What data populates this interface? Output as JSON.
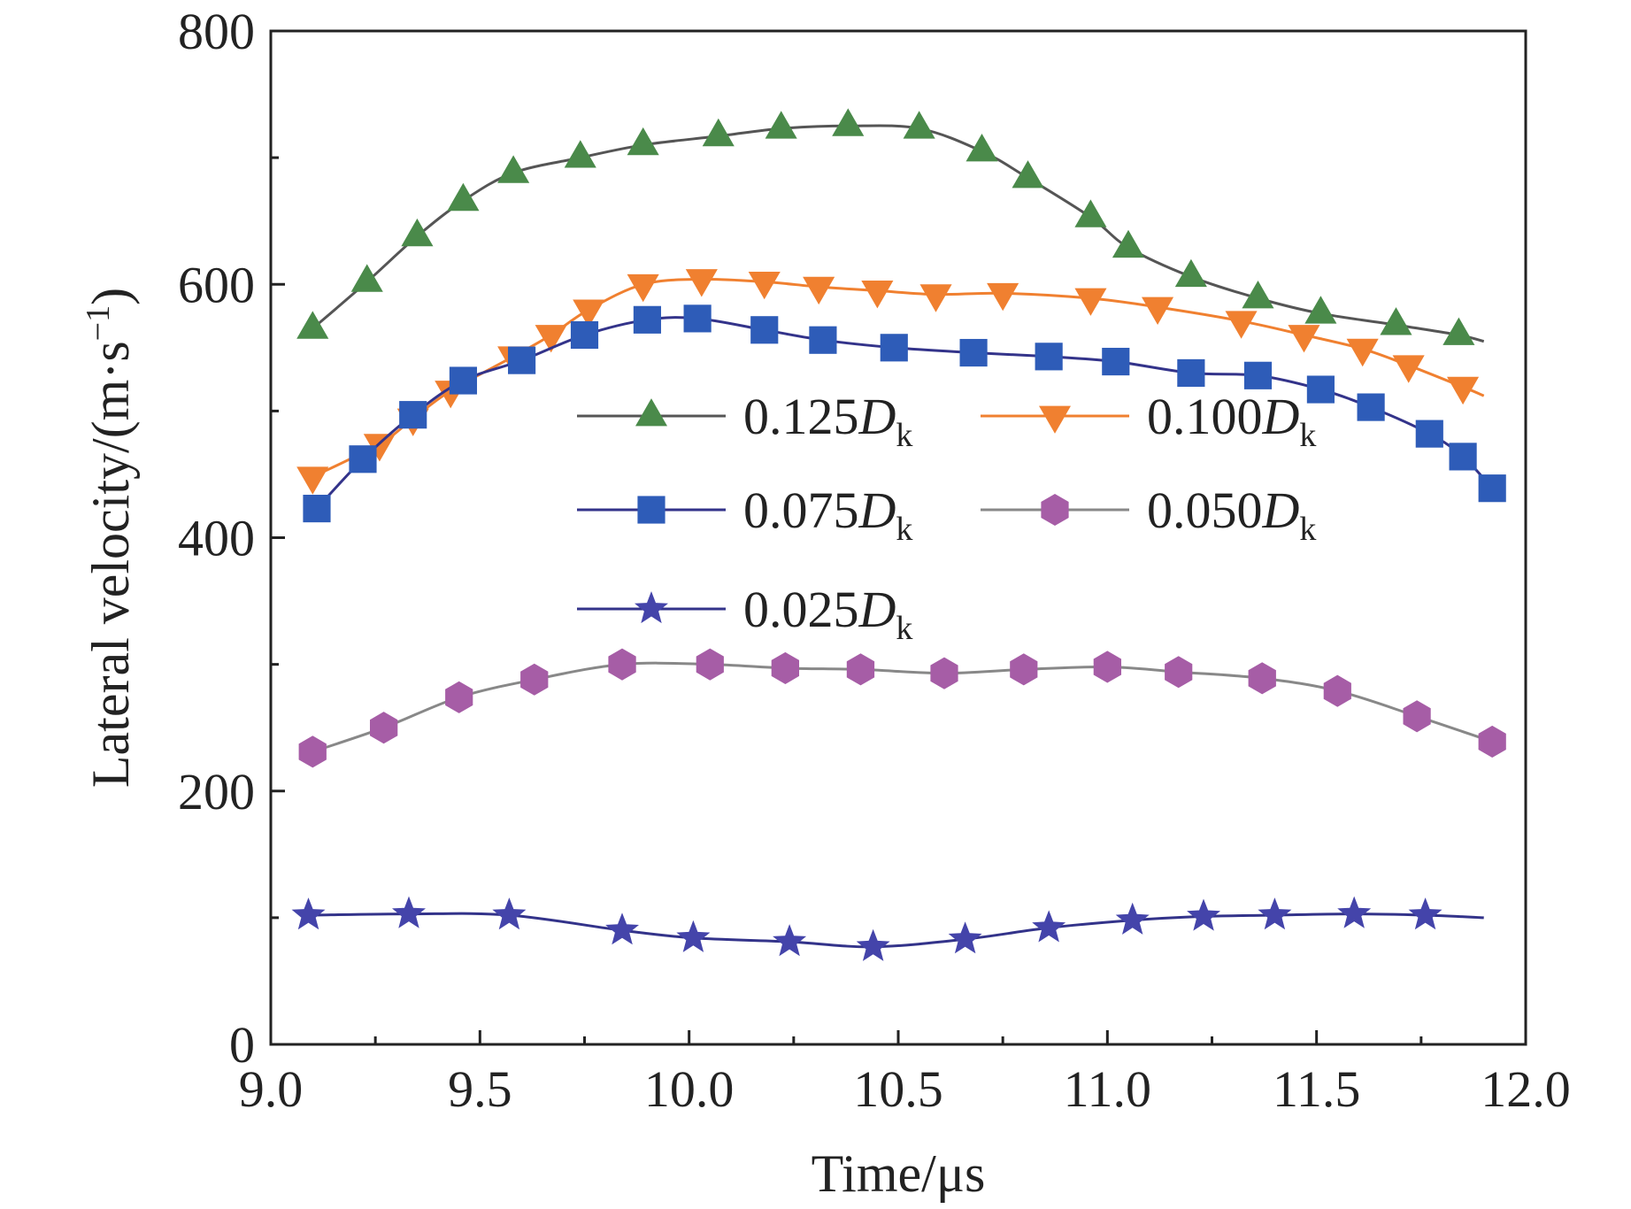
{
  "chart_data": {
    "type": "line",
    "xlabel": "Time/μs",
    "ylabel": "Lateral velocity/(m·s",
    "ylabel_sup": "−1",
    "ylabel_close": ")",
    "xlim": [
      9.0,
      12.0
    ],
    "ylim": [
      0,
      800
    ],
    "xticks": [
      "9.0",
      "9.5",
      "10.0",
      "10.5",
      "11.0",
      "11.5",
      "12.0"
    ],
    "yticks": [
      "0",
      "200",
      "400",
      "600",
      "800"
    ],
    "grid": false,
    "legend_position": "center",
    "legend_columns": 2,
    "series": [
      {
        "name_prefix": "0.125",
        "name_var": "D",
        "name_sub": "k",
        "color": "#4a8a4a",
        "line_color": "#555555",
        "marker": "triangle-up",
        "x": [
          9.1,
          9.23,
          9.35,
          9.46,
          9.58,
          9.74,
          9.89,
          10.07,
          10.22,
          10.38,
          10.55,
          10.7,
          10.81,
          10.96,
          11.05,
          11.2,
          11.36,
          11.51,
          11.69,
          11.84
        ],
        "y": [
          565,
          602,
          638,
          666,
          688,
          700,
          710,
          717,
          723,
          725,
          723,
          705,
          684,
          653,
          629,
          606,
          589,
          577,
          568,
          560
        ],
        "line_end": [
          11.9,
          555
        ]
      },
      {
        "name_prefix": "0.100",
        "name_var": "D",
        "name_sub": "k",
        "color": "#f08030",
        "line_color": "#f08030",
        "marker": "triangle-down",
        "x": [
          9.1,
          9.26,
          9.34,
          9.43,
          9.58,
          9.67,
          9.76,
          9.89,
          10.03,
          10.18,
          10.31,
          10.45,
          10.59,
          10.75,
          10.96,
          11.12,
          11.32,
          11.47,
          11.61,
          11.72,
          11.85
        ],
        "y": [
          448,
          474,
          494,
          516,
          543,
          560,
          580,
          600,
          604,
          602,
          598,
          595,
          592,
          593,
          589,
          582,
          571,
          560,
          549,
          536,
          519
        ],
        "line_end": [
          11.9,
          512
        ]
      },
      {
        "name_prefix": "0.075",
        "name_var": "D",
        "name_sub": "k",
        "color": "#2e5cb8",
        "line_color": "#33338a",
        "marker": "square",
        "x": [
          9.11,
          9.22,
          9.34,
          9.46,
          9.6,
          9.75,
          9.9,
          10.02,
          10.18,
          10.32,
          10.49,
          10.68,
          10.86,
          11.02,
          11.2,
          11.36,
          11.51,
          11.63,
          11.77,
          11.85,
          11.92
        ],
        "y": [
          423,
          462,
          497,
          524,
          540,
          560,
          572,
          573,
          564,
          556,
          550,
          546,
          543,
          539,
          530,
          528,
          517,
          503,
          482,
          464,
          439
        ],
        "line_end": [
          11.92,
          439
        ]
      },
      {
        "name_prefix": "0.050",
        "name_var": "D",
        "name_sub": "k",
        "color": "#a65da6",
        "line_color": "#888888",
        "marker": "hexagon",
        "x": [
          9.1,
          9.27,
          9.45,
          9.63,
          9.84,
          10.05,
          10.23,
          10.41,
          10.61,
          10.8,
          11.0,
          11.17,
          11.37,
          11.55,
          11.74,
          11.92
        ],
        "y": [
          231,
          250,
          274,
          288,
          300,
          300,
          297,
          296,
          293,
          296,
          298,
          294,
          289,
          279,
          259,
          239
        ],
        "line_end": [
          11.92,
          239
        ]
      },
      {
        "name_prefix": "0.025",
        "name_var": "D",
        "name_sub": "k",
        "color": "#4444aa",
        "line_color": "#33338a",
        "marker": "star",
        "x": [
          9.09,
          9.33,
          9.57,
          9.84,
          10.01,
          10.24,
          10.44,
          10.66,
          10.86,
          11.06,
          11.23,
          11.4,
          11.59,
          11.76
        ],
        "y": [
          102,
          103,
          102,
          90,
          84,
          81,
          77,
          83,
          92,
          98,
          101,
          102,
          103,
          102
        ],
        "line_end": [
          11.9,
          100
        ]
      }
    ]
  }
}
